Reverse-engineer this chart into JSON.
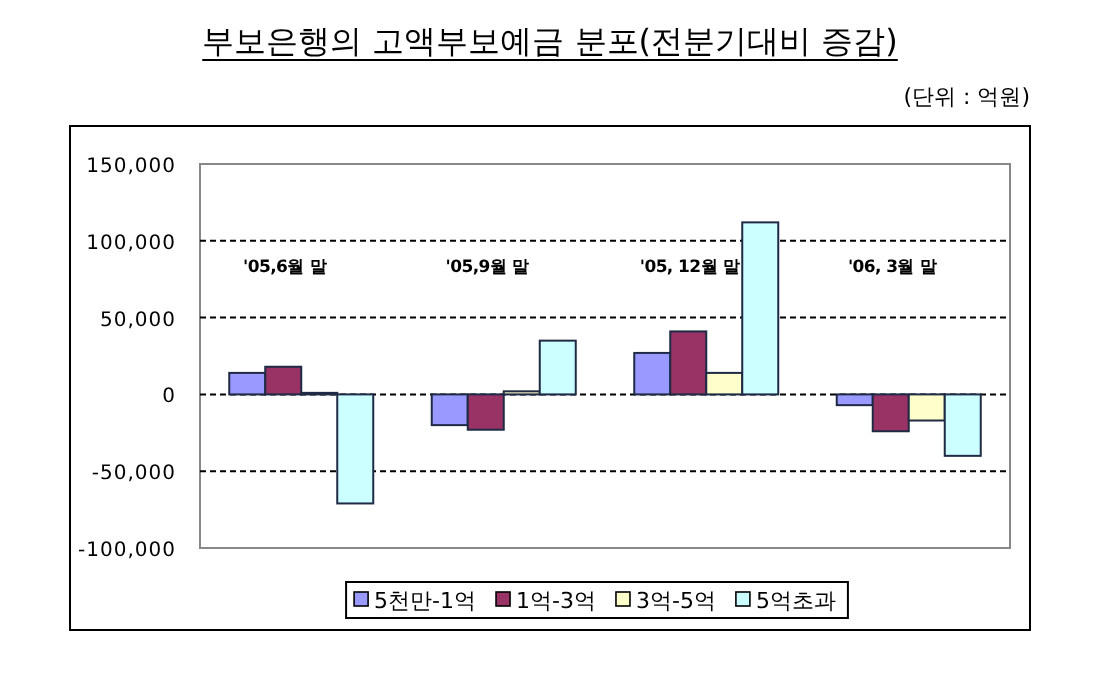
{
  "chart_data": {
    "type": "bar",
    "title": "부보은행의 고액부보예금 분포(전분기대비 증감)",
    "annotations": [
      "(단위 : 억원)"
    ],
    "categories": [
      "'05,6월 말",
      "'05,9월 말",
      "'05, 12월 말",
      "'06, 3월 말"
    ],
    "series": [
      {
        "name": "5천만-1억",
        "color": "#9999ff",
        "values": [
          14000,
          -20000,
          27000,
          -7000
        ]
      },
      {
        "name": "1억-3억",
        "color": "#993366",
        "values": [
          18000,
          -23000,
          41000,
          -24000
        ]
      },
      {
        "name": "3억-5억",
        "color": "#ffffcc",
        "values": [
          1000,
          2000,
          14000,
          -17000
        ]
      },
      {
        "name": "5억초과",
        "color": "#ccffff",
        "values": [
          -71000,
          35000,
          112000,
          -40000
        ]
      }
    ],
    "ylim": [
      -100000,
      150000
    ],
    "yticks": [
      {
        "value": -100000,
        "label": "-100,000"
      },
      {
        "value": -50000,
        "label": "-50,000"
      },
      {
        "value": 0,
        "label": "0"
      },
      {
        "value": 50000,
        "label": "50,000"
      },
      {
        "value": 100000,
        "label": "100,000"
      },
      {
        "value": 150000,
        "label": "150,000"
      }
    ],
    "grid": "y",
    "legend": "bottom"
  }
}
